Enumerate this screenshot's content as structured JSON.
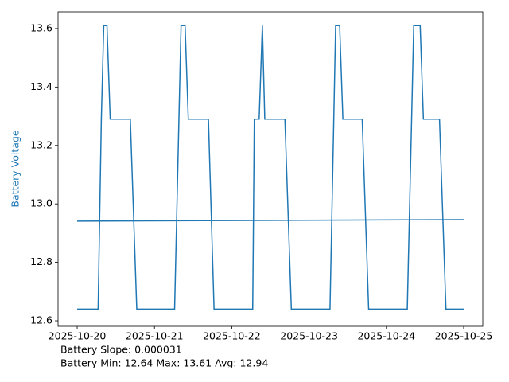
{
  "chart_data": {
    "type": "line",
    "y_label": "Battery Voltage",
    "y_label_color": "#1f77b4",
    "annotations": [
      "Battery Slope: 0.000031",
      "Battery Min: 12.64 Max: 13.61 Avg: 12.94"
    ],
    "series": [
      {
        "color": "#1f77b4",
        "x": [
          "2025-10-20T00:00",
          "2025-10-20T06:30",
          "2025-10-20T07:30",
          "2025-10-20T08:15",
          "2025-10-20T09:15",
          "2025-10-20T10:15",
          "2025-10-20T16:30",
          "2025-10-20T18:30",
          "2025-10-21T06:15",
          "2025-10-21T08:15",
          "2025-10-21T09:30",
          "2025-10-21T10:30",
          "2025-10-21T16:45",
          "2025-10-21T18:30",
          "2025-10-22T06:30",
          "2025-10-22T07:00",
          "2025-10-22T08:30",
          "2025-10-22T09:30",
          "2025-10-22T10:15",
          "2025-10-22T16:30",
          "2025-10-22T18:30",
          "2025-10-23T06:30",
          "2025-10-23T08:15",
          "2025-10-23T09:30",
          "2025-10-23T10:30",
          "2025-10-23T16:30",
          "2025-10-23T18:30",
          "2025-10-24T06:30",
          "2025-10-24T08:30",
          "2025-10-24T10:30",
          "2025-10-24T11:30",
          "2025-10-24T16:30",
          "2025-10-24T18:30",
          "2025-10-25T00:00"
        ],
        "values": [
          12.64,
          12.64,
          13.29,
          13.61,
          13.61,
          13.29,
          13.29,
          12.64,
          12.64,
          13.61,
          13.61,
          13.29,
          13.29,
          12.64,
          12.64,
          13.29,
          13.29,
          13.61,
          13.29,
          13.29,
          12.64,
          12.64,
          13.61,
          13.61,
          13.29,
          13.29,
          12.64,
          12.64,
          13.61,
          13.61,
          13.29,
          13.29,
          12.64,
          12.64
        ]
      },
      {
        "color": "#1f77b4",
        "x": [
          "2025-10-20T00:00",
          "2025-10-25T00:00"
        ],
        "values": [
          12.941,
          12.946
        ]
      }
    ],
    "xlim": [
      "2025-10-19T18:04",
      "2025-10-25T05:56"
    ],
    "xticks": [
      "2025-10-20",
      "2025-10-21",
      "2025-10-22",
      "2025-10-23",
      "2025-10-24",
      "2025-10-25"
    ],
    "ylim": [
      12.581,
      13.657
    ],
    "yticks": [
      12.6,
      12.8,
      {
        "value": 13,
        "label": "13.0"
      },
      13.2,
      13.4,
      13.6
    ]
  }
}
